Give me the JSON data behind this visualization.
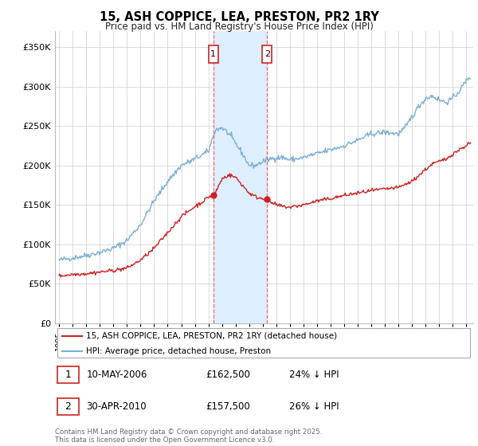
{
  "title": "15, ASH COPPICE, LEA, PRESTON, PR2 1RY",
  "subtitle": "Price paid vs. HM Land Registry's House Price Index (HPI)",
  "ytick_values": [
    0,
    50000,
    100000,
    150000,
    200000,
    250000,
    300000,
    350000
  ],
  "ylabel_ticks": [
    "£0",
    "£50K",
    "£100K",
    "£150K",
    "£200K",
    "£250K",
    "£300K",
    "£350K"
  ],
  "ylim": [
    0,
    370000
  ],
  "xlim_start": 1994.7,
  "xlim_end": 2025.5,
  "hpi_color": "#7bafd4",
  "price_color": "#cc2222",
  "marker1_x": 2006.36,
  "marker2_x": 2010.33,
  "legend_label_red": "15, ASH COPPICE, LEA, PRESTON, PR2 1RY (detached house)",
  "legend_label_blue": "HPI: Average price, detached house, Preston",
  "table_row1": [
    "1",
    "10-MAY-2006",
    "£162,500",
    "24% ↓ HPI"
  ],
  "table_row2": [
    "2",
    "30-APR-2010",
    "£157,500",
    "26% ↓ HPI"
  ],
  "footer": "Contains HM Land Registry data © Crown copyright and database right 2025.\nThis data is licensed under the Open Government Licence v3.0.",
  "background_color": "#ffffff",
  "grid_color": "#cccccc",
  "span_color": "#ddeeff"
}
